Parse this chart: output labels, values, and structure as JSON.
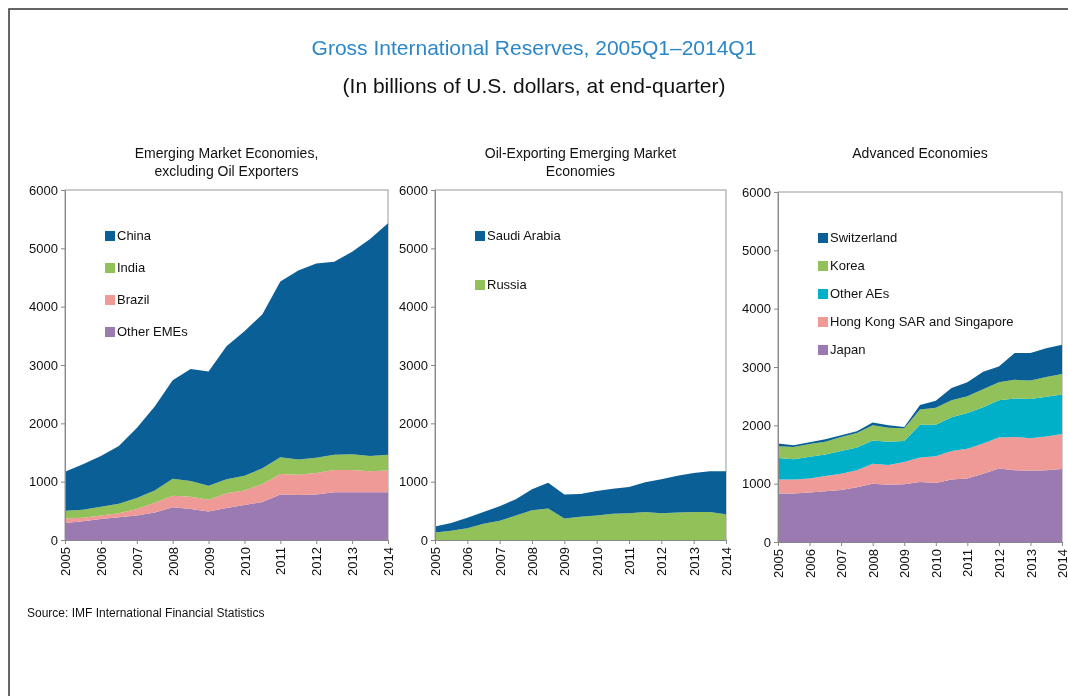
{
  "chart_data": [
    {
      "type": "other",
      "title": "Gross International Reserves, 2005Q1–2014Q1",
      "subtitle": "(In billions of U.S. dollars, at end-quarter)",
      "annotations": [
        "Source: IMF International  Financial Statistics"
      ]
    },
    {
      "type": "area",
      "stacked": true,
      "title": "Emerging Market Economies, excluding Oil Exporters",
      "x": [
        2005,
        2005.5,
        2006,
        2006.5,
        2007,
        2007.5,
        2008,
        2008.5,
        2009,
        2009.5,
        2010,
        2010.5,
        2011,
        2011.5,
        2012,
        2012.5,
        2013,
        2013.5,
        2014
      ],
      "xlim": [
        2005,
        2014
      ],
      "xticks": [
        2005,
        2006,
        2007,
        2008,
        2009,
        2010,
        2011,
        2012,
        2013,
        2014
      ],
      "ylim": [
        0,
        6000
      ],
      "yticks": [
        0,
        1000,
        2000,
        3000,
        4000,
        5000,
        6000
      ],
      "legend": "top left",
      "series": [
        {
          "name": "Other EMEs",
          "color": "#9b7ab2",
          "values": [
            290,
            320,
            360,
            390,
            420,
            470,
            560,
            530,
            490,
            550,
            600,
            650,
            780,
            770,
            780,
            820,
            820,
            820,
            820
          ]
        },
        {
          "name": "Brazil",
          "color": "#ef9a96",
          "values": [
            80,
            60,
            60,
            70,
            110,
            170,
            200,
            210,
            200,
            250,
            250,
            310,
            350,
            350,
            370,
            380,
            380,
            360,
            370
          ]
        },
        {
          "name": "India",
          "color": "#92c15a",
          "values": [
            130,
            140,
            150,
            160,
            190,
            210,
            290,
            270,
            240,
            240,
            250,
            270,
            290,
            260,
            260,
            260,
            270,
            260,
            270
          ]
        },
        {
          "name": "China",
          "color": "#0a6096",
          "values": [
            670,
            780,
            870,
            990,
            1200,
            1440,
            1690,
            1920,
            1960,
            2280,
            2480,
            2640,
            3010,
            3240,
            3330,
            3310,
            3470,
            3720,
            3970
          ]
        }
      ]
    },
    {
      "type": "area",
      "stacked": true,
      "title": "Oil-Exporting Emerging Market Economies",
      "x": [
        2005,
        2005.5,
        2006,
        2006.5,
        2007,
        2007.5,
        2008,
        2008.5,
        2009,
        2009.5,
        2010,
        2010.5,
        2011,
        2011.5,
        2012,
        2012.5,
        2013,
        2013.5,
        2014
      ],
      "xlim": [
        2005,
        2014
      ],
      "xticks": [
        2005,
        2006,
        2007,
        2008,
        2009,
        2010,
        2011,
        2012,
        2013,
        2014
      ],
      "ylim": [
        0,
        6000
      ],
      "yticks": [
        0,
        1000,
        2000,
        3000,
        4000,
        5000,
        6000
      ],
      "legend": "top left",
      "series": [
        {
          "name": "Russia",
          "color": "#92c15a",
          "values": [
            130,
            160,
            200,
            280,
            330,
            420,
            510,
            540,
            370,
            400,
            420,
            450,
            460,
            480,
            460,
            470,
            480,
            480,
            440
          ]
        },
        {
          "name": "Saudi Arabia",
          "color": "#0a6096",
          "values": [
            100,
            130,
            180,
            200,
            250,
            280,
            360,
            440,
            410,
            390,
            420,
            430,
            450,
            510,
            580,
            630,
            670,
            700,
            740
          ]
        }
      ]
    },
    {
      "type": "area",
      "stacked": true,
      "title": "Advanced Economies",
      "x": [
        2005,
        2005.5,
        2006,
        2006.5,
        2007,
        2007.5,
        2008,
        2008.5,
        2009,
        2009.5,
        2010,
        2010.5,
        2011,
        2011.5,
        2012,
        2012.5,
        2013,
        2013.5,
        2014
      ],
      "xlim": [
        2005,
        2014
      ],
      "xticks": [
        2005,
        2006,
        2007,
        2008,
        2009,
        2010,
        2011,
        2012,
        2013,
        2014
      ],
      "ylim": [
        0,
        6000
      ],
      "yticks": [
        0,
        1000,
        2000,
        3000,
        4000,
        5000,
        6000
      ],
      "legend": "top left",
      "series": [
        {
          "name": "Japan",
          "color": "#9b7ab2",
          "values": [
            830,
            830,
            850,
            870,
            890,
            940,
            1000,
            980,
            990,
            1030,
            1010,
            1070,
            1090,
            1170,
            1260,
            1230,
            1220,
            1230,
            1250
          ]
        },
        {
          "name": "Hong Kong SAR and Singapore",
          "color": "#ef9a96",
          "values": [
            240,
            240,
            240,
            260,
            280,
            290,
            340,
            340,
            380,
            420,
            460,
            490,
            510,
            520,
            530,
            570,
            560,
            580,
            600
          ]
        },
        {
          "name": "Other AEs",
          "color": "#00b0c8",
          "values": [
            370,
            350,
            370,
            370,
            390,
            390,
            400,
            400,
            360,
            560,
            540,
            580,
            610,
            620,
            640,
            660,
            670,
            680,
            680
          ]
        },
        {
          "name": "Korea",
          "color": "#92c15a",
          "values": [
            200,
            210,
            220,
            220,
            240,
            250,
            260,
            240,
            220,
            260,
            290,
            290,
            290,
            310,
            310,
            320,
            320,
            340,
            350
          ]
        },
        {
          "name": "Switzerland",
          "color": "#0a6096",
          "values": [
            50,
            30,
            30,
            40,
            30,
            30,
            50,
            40,
            20,
            80,
            120,
            210,
            240,
            300,
            270,
            460,
            470,
            490,
            500
          ]
        }
      ]
    }
  ]
}
